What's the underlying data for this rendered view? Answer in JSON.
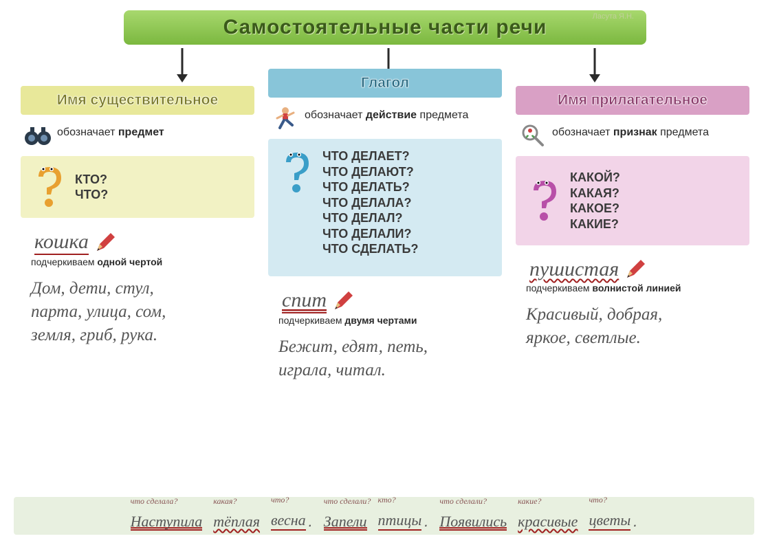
{
  "title": "Самостоятельные части речи",
  "author": "Ласута Я.Н.",
  "colors": {
    "title_bg_from": "#a8d86e",
    "title_bg_to": "#7bb83f",
    "noun_title_bg": "#e8e89a",
    "verb_title_bg": "#88c5d9",
    "adj_title_bg": "#d9a0c5",
    "noun_box_bg": "#f2f2c4",
    "verb_box_bg": "#d4eaf2",
    "adj_box_bg": "#f2d4e8",
    "underline": "#a02020",
    "footer_bg": "#e8f0e0",
    "arrow_stroke": "#2a2a2a"
  },
  "noun": {
    "title": "Имя существительное",
    "meaning_pre": "обозначает ",
    "meaning_bold": "предмет",
    "questions": "КТО?\nЧТО?",
    "example_word": "кошка",
    "underline_note_pre": "подчеркиваем ",
    "underline_note_bold": "одной чертой",
    "examples": "Дом, дети, стул,\nпарта, улица, сом,\nземля, гриб, рука.",
    "qmark_color": "#e8a030",
    "icon_name": "binoculars-icon"
  },
  "verb": {
    "title": "Глагол",
    "meaning_pre": "обозначает ",
    "meaning_bold": "действие",
    "meaning_post": " предмета",
    "questions": "ЧТО ДЕЛАЕТ?\nЧТО ДЕЛАЮТ?\nЧТО ДЕЛАТЬ?\nЧТО ДЕЛАЛА?\nЧТО ДЕЛАЛ?\nЧТО ДЕЛАЛИ?\nЧТО СДЕЛАТЬ?",
    "example_word": "спит",
    "underline_note_pre": "подчеркиваем ",
    "underline_note_bold": "двумя чертами",
    "examples": "Бежит, едят, петь,\nиграла, читал.",
    "qmark_color": "#3a9ec8",
    "icon_name": "running-boy-icon"
  },
  "adj": {
    "title": "Имя прилагательное",
    "meaning_pre": "обозначает ",
    "meaning_bold": "признак",
    "meaning_post": " предмета",
    "questions": "КАКОЙ?\nКАКАЯ?\nКАКОЕ?\nКАКИЕ?",
    "example_word": "пушистая",
    "underline_note_pre": "подчеркиваем ",
    "underline_note_bold": "волнистой линией",
    "examples": "Красивый, добрая,\nяркое, светлые.",
    "qmark_color": "#b850a8",
    "icon_name": "magnifier-plant-icon"
  },
  "footer": {
    "groups": [
      {
        "words": [
          {
            "text": "Наступила",
            "ul": "double",
            "annot": "что сделала?"
          },
          {
            "text": "тёплая",
            "ul": "wavy",
            "annot": "какая?"
          },
          {
            "text": "весна",
            "ul": "single",
            "annot": "что?"
          }
        ]
      },
      {
        "words": [
          {
            "text": "Запели",
            "ul": "double",
            "annot": "что сделали?"
          },
          {
            "text": "птицы",
            "ul": "single",
            "annot": "кто?"
          }
        ]
      },
      {
        "words": [
          {
            "text": "Появились",
            "ul": "double",
            "annot": "что сделали?"
          },
          {
            "text": "красивые",
            "ul": "wavy",
            "annot": "какие?"
          },
          {
            "text": "цветы",
            "ul": "single",
            "annot": "что?"
          }
        ]
      }
    ]
  }
}
